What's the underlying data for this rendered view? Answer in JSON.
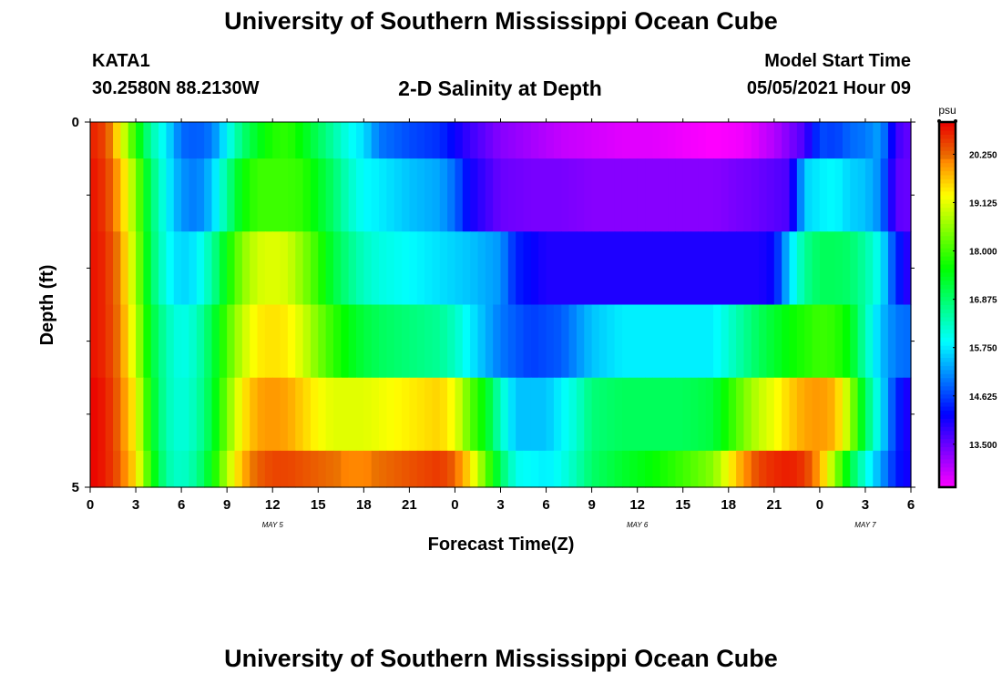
{
  "header": {
    "title": "University of Southern Mississippi Ocean Cube",
    "station_id": "KATA1",
    "coordinates": "30.2580N  88.2130W",
    "model_start_label": "Model Start Time",
    "model_start_time": "05/05/2021 Hour 09"
  },
  "footer": {
    "title": "University of Southern Mississippi Ocean Cube"
  },
  "colors": {
    "text": "#000000",
    "frame": "#000000",
    "background": "#ffffff"
  },
  "chart_data": {
    "type": "heatmap",
    "title": "2-D Salinity at Depth",
    "xlabel": "Forecast Time(Z)",
    "ylabel": "Depth (ft)",
    "x_hours_range": [
      0,
      54
    ],
    "y_range": [
      0,
      5
    ],
    "y_tick_labels": [
      {
        "value": 0,
        "label": "0"
      },
      {
        "value": 5,
        "label": "5"
      }
    ],
    "y_minor_ticks": [
      1,
      2,
      3,
      4
    ],
    "x_ticks": [
      {
        "hour": 0,
        "label": "0"
      },
      {
        "hour": 3,
        "label": "3"
      },
      {
        "hour": 6,
        "label": "6"
      },
      {
        "hour": 9,
        "label": "9"
      },
      {
        "hour": 12,
        "label": "12"
      },
      {
        "hour": 15,
        "label": "15"
      },
      {
        "hour": 18,
        "label": "18"
      },
      {
        "hour": 21,
        "label": "21"
      },
      {
        "hour": 24,
        "label": "0"
      },
      {
        "hour": 27,
        "label": "3"
      },
      {
        "hour": 30,
        "label": "6"
      },
      {
        "hour": 33,
        "label": "9"
      },
      {
        "hour": 36,
        "label": "12"
      },
      {
        "hour": 39,
        "label": "15"
      },
      {
        "hour": 42,
        "label": "18"
      },
      {
        "hour": 45,
        "label": "21"
      },
      {
        "hour": 48,
        "label": "0"
      },
      {
        "hour": 51,
        "label": "3"
      },
      {
        "hour": 54,
        "label": "6"
      }
    ],
    "date_labels": [
      {
        "hour": 12,
        "label": "MAY 5"
      },
      {
        "hour": 36,
        "label": "MAY 6"
      },
      {
        "hour": 51,
        "label": "MAY 7"
      }
    ],
    "colorbar": {
      "unit": "psu",
      "min": 12.5,
      "max": 21.0,
      "tick_values": [
        13.5,
        14.625,
        15.75,
        16.875,
        18.0,
        19.125,
        20.25
      ],
      "tick_labels": [
        "13.500",
        "14.625",
        "15.750",
        "16.875",
        "18.000",
        "19.125",
        "20.250"
      ]
    },
    "rows": [
      {
        "depth_band": "0.0-0.5",
        "keys": [
          [
            0,
            20.8
          ],
          [
            1,
            20.5
          ],
          [
            2,
            19.3
          ],
          [
            3,
            17.8
          ],
          [
            4,
            16.5
          ],
          [
            5,
            15.8
          ],
          [
            6,
            14.9
          ],
          [
            7,
            14.8
          ],
          [
            8,
            15.0
          ],
          [
            9,
            15.9
          ],
          [
            10,
            16.8
          ],
          [
            11,
            17.4
          ],
          [
            12,
            17.8
          ],
          [
            13,
            17.9
          ],
          [
            14,
            17.5
          ],
          [
            15,
            17.0
          ],
          [
            16,
            16.5
          ],
          [
            17,
            16.0
          ],
          [
            18,
            15.7
          ],
          [
            19,
            15.0
          ],
          [
            21,
            14.7
          ],
          [
            23,
            14.5
          ],
          [
            25,
            13.8
          ],
          [
            27,
            13.3
          ],
          [
            29,
            13.1
          ],
          [
            31,
            12.9
          ],
          [
            33,
            12.8
          ],
          [
            35,
            12.7
          ],
          [
            37,
            12.7
          ],
          [
            39,
            12.6
          ],
          [
            41,
            12.5
          ],
          [
            43,
            12.6
          ],
          [
            45,
            13.0
          ],
          [
            47,
            13.7
          ],
          [
            48,
            14.7
          ],
          [
            49,
            14.6
          ],
          [
            50,
            14.9
          ],
          [
            51,
            15.0
          ],
          [
            52,
            15.3
          ],
          [
            53,
            13.8
          ],
          [
            54,
            13.5
          ]
        ]
      },
      {
        "depth_band": "0.5-1.5",
        "keys": [
          [
            0,
            20.9
          ],
          [
            1,
            20.6
          ],
          [
            2,
            19.8
          ],
          [
            3,
            18.5
          ],
          [
            4,
            16.9
          ],
          [
            5,
            15.9
          ],
          [
            6,
            15.2
          ],
          [
            7,
            15.0
          ],
          [
            8,
            15.5
          ],
          [
            9,
            16.6
          ],
          [
            10,
            17.6
          ],
          [
            11,
            18.0
          ],
          [
            12,
            18.0
          ],
          [
            13,
            18.0
          ],
          [
            14,
            17.9
          ],
          [
            15,
            17.4
          ],
          [
            16,
            16.9
          ],
          [
            17,
            16.3
          ],
          [
            18,
            15.9
          ],
          [
            19,
            15.8
          ],
          [
            21,
            15.5
          ],
          [
            23,
            15.3
          ],
          [
            24,
            14.9
          ],
          [
            25,
            14.1
          ],
          [
            27,
            13.5
          ],
          [
            29,
            13.4
          ],
          [
            31,
            13.4
          ],
          [
            33,
            13.3
          ],
          [
            35,
            13.3
          ],
          [
            37,
            13.3
          ],
          [
            39,
            13.3
          ],
          [
            41,
            13.3
          ],
          [
            44,
            13.5
          ],
          [
            46,
            13.7
          ],
          [
            46.5,
            14.6
          ],
          [
            47,
            15.6
          ],
          [
            48,
            15.8
          ],
          [
            49,
            15.9
          ],
          [
            50,
            15.6
          ],
          [
            51,
            15.5
          ],
          [
            52,
            15.1
          ],
          [
            53,
            13.6
          ],
          [
            54,
            13.5
          ]
        ]
      },
      {
        "depth_band": "1.5-2.5",
        "keys": [
          [
            0,
            20.9
          ],
          [
            1,
            20.7
          ],
          [
            2,
            20.0
          ],
          [
            3,
            18.7
          ],
          [
            4,
            17.0
          ],
          [
            5,
            16.0
          ],
          [
            6,
            15.6
          ],
          [
            7,
            15.8
          ],
          [
            8,
            16.5
          ],
          [
            9,
            17.6
          ],
          [
            10,
            18.5
          ],
          [
            11,
            19.0
          ],
          [
            12,
            19.1
          ],
          [
            13,
            19.0
          ],
          [
            14,
            18.5
          ],
          [
            15,
            17.9
          ],
          [
            16,
            17.2
          ],
          [
            17,
            16.7
          ],
          [
            18,
            16.3
          ],
          [
            19,
            16.1
          ],
          [
            21,
            15.9
          ],
          [
            23,
            15.7
          ],
          [
            25,
            15.5
          ],
          [
            27,
            15.2
          ],
          [
            28,
            14.4
          ],
          [
            30,
            14.0
          ],
          [
            33,
            14.0
          ],
          [
            36,
            14.0
          ],
          [
            39,
            14.0
          ],
          [
            42,
            14.0
          ],
          [
            44,
            14.0
          ],
          [
            45,
            14.2
          ],
          [
            46,
            15.6
          ],
          [
            47,
            16.6
          ],
          [
            48,
            17.0
          ],
          [
            49,
            17.0
          ],
          [
            50,
            16.9
          ],
          [
            51,
            16.5
          ],
          [
            52,
            15.9
          ],
          [
            53,
            14.5
          ],
          [
            54,
            13.8
          ]
        ]
      },
      {
        "depth_band": "2.5-3.5",
        "keys": [
          [
            0,
            20.9
          ],
          [
            1,
            20.7
          ],
          [
            2,
            20.1
          ],
          [
            3,
            18.9
          ],
          [
            4,
            17.3
          ],
          [
            5,
            16.4
          ],
          [
            6,
            16.0
          ],
          [
            7,
            16.3
          ],
          [
            8,
            17.1
          ],
          [
            9,
            18.1
          ],
          [
            10,
            18.9
          ],
          [
            11,
            19.4
          ],
          [
            12,
            19.5
          ],
          [
            13,
            19.4
          ],
          [
            14,
            19.0
          ],
          [
            15,
            18.4
          ],
          [
            16,
            17.9
          ],
          [
            17,
            17.5
          ],
          [
            18,
            17.2
          ],
          [
            19,
            17.0
          ],
          [
            21,
            16.8
          ],
          [
            23,
            16.6
          ],
          [
            24,
            16.3
          ],
          [
            25,
            15.8
          ],
          [
            27,
            15.0
          ],
          [
            29,
            14.6
          ],
          [
            31,
            14.8
          ],
          [
            33,
            15.5
          ],
          [
            35,
            15.8
          ],
          [
            37,
            15.8
          ],
          [
            39,
            15.8
          ],
          [
            41,
            15.8
          ],
          [
            42,
            16.2
          ],
          [
            44,
            17.0
          ],
          [
            46,
            17.6
          ],
          [
            47,
            17.8
          ],
          [
            48,
            18.0
          ],
          [
            49,
            17.9
          ],
          [
            50,
            17.5
          ],
          [
            51,
            16.4
          ],
          [
            52,
            15.5
          ],
          [
            53,
            15.0
          ],
          [
            54,
            14.9
          ]
        ]
      },
      {
        "depth_band": "3.5-4.5",
        "keys": [
          [
            0,
            21.0
          ],
          [
            1,
            20.8
          ],
          [
            2,
            20.2
          ],
          [
            3,
            19.3
          ],
          [
            4,
            17.5
          ],
          [
            5,
            16.4
          ],
          [
            6,
            16.1
          ],
          [
            7,
            16.4
          ],
          [
            8,
            17.2
          ],
          [
            9,
            18.4
          ],
          [
            10,
            19.4
          ],
          [
            11,
            19.9
          ],
          [
            12,
            20.0
          ],
          [
            13,
            19.9
          ],
          [
            14,
            19.6
          ],
          [
            15,
            19.3
          ],
          [
            16,
            19.1
          ],
          [
            17,
            19.1
          ],
          [
            18,
            19.1
          ],
          [
            19,
            19.2
          ],
          [
            21,
            19.4
          ],
          [
            23,
            19.6
          ],
          [
            24,
            19.2
          ],
          [
            25,
            18.2
          ],
          [
            26,
            17.5
          ],
          [
            27,
            16.3
          ],
          [
            28,
            15.5
          ],
          [
            30,
            15.5
          ],
          [
            32,
            16.2
          ],
          [
            33,
            16.8
          ],
          [
            35,
            17.0
          ],
          [
            37,
            17.0
          ],
          [
            39,
            17.0
          ],
          [
            41,
            17.2
          ],
          [
            42,
            17.8
          ],
          [
            43,
            18.4
          ],
          [
            44,
            18.9
          ],
          [
            45,
            19.2
          ],
          [
            46,
            19.6
          ],
          [
            47,
            19.9
          ],
          [
            48,
            20.0
          ],
          [
            49,
            19.8
          ],
          [
            50,
            18.7
          ],
          [
            51,
            17.0
          ],
          [
            52,
            15.8
          ],
          [
            53,
            14.5
          ],
          [
            54,
            13.9
          ]
        ]
      },
      {
        "depth_band": "4.5-5.0",
        "keys": [
          [
            0,
            21.0
          ],
          [
            1,
            20.8
          ],
          [
            2,
            20.3
          ],
          [
            3,
            19.5
          ],
          [
            4,
            17.8
          ],
          [
            5,
            16.5
          ],
          [
            6,
            16.2
          ],
          [
            7,
            16.6
          ],
          [
            8,
            17.5
          ],
          [
            9,
            18.8
          ],
          [
            10,
            19.8
          ],
          [
            11,
            20.3
          ],
          [
            12,
            20.5
          ],
          [
            13,
            20.5
          ],
          [
            14,
            20.4
          ],
          [
            15,
            20.3
          ],
          [
            16,
            20.2
          ],
          [
            17,
            20.1
          ],
          [
            18,
            20.1
          ],
          [
            19,
            20.2
          ],
          [
            21,
            20.4
          ],
          [
            23,
            20.6
          ],
          [
            24,
            20.3
          ],
          [
            25,
            19.5
          ],
          [
            26,
            18.3
          ],
          [
            27,
            17.0
          ],
          [
            28,
            16.0
          ],
          [
            30,
            15.8
          ],
          [
            31,
            16.0
          ],
          [
            32,
            16.4
          ],
          [
            33,
            16.9
          ],
          [
            35,
            17.3
          ],
          [
            37,
            17.6
          ],
          [
            39,
            18.0
          ],
          [
            41,
            18.5
          ],
          [
            42,
            19.3
          ],
          [
            43,
            20.0
          ],
          [
            44,
            20.5
          ],
          [
            45,
            20.7
          ],
          [
            46,
            20.8
          ],
          [
            47,
            20.6
          ],
          [
            48,
            19.9
          ],
          [
            49,
            18.6
          ],
          [
            50,
            17.2
          ],
          [
            51,
            16.1
          ],
          [
            52,
            15.3
          ],
          [
            53,
            14.4
          ],
          [
            54,
            14.0
          ]
        ]
      }
    ]
  }
}
